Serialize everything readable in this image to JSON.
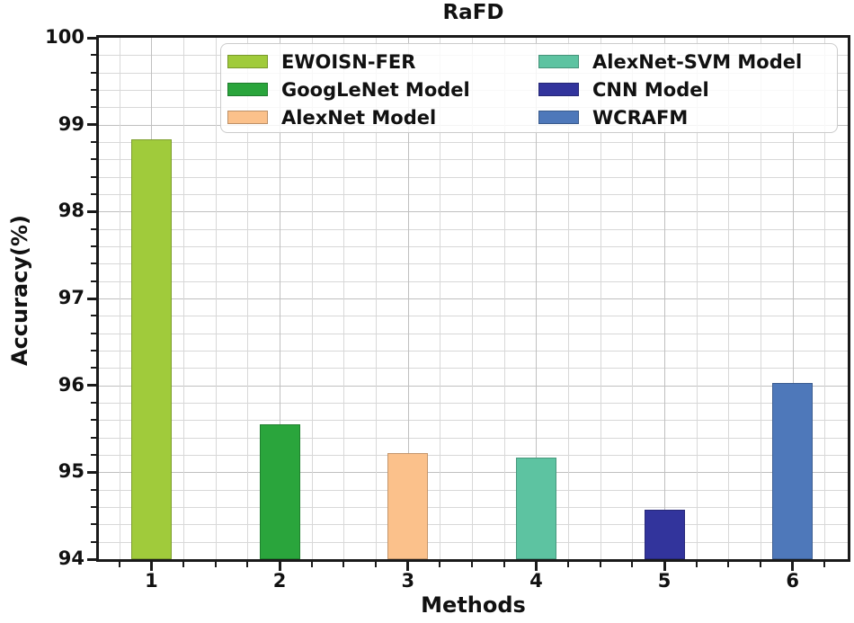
{
  "title": "RaFD",
  "axes": {
    "y_ticks": [
      "94",
      "95",
      "96",
      "97",
      "98",
      "99",
      "100"
    ],
    "x_ticks": [
      "1",
      "2",
      "3",
      "4",
      "5",
      "6"
    ]
  },
  "chart_data": {
    "type": "bar",
    "title": "RaFD",
    "xlabel": "Methods",
    "ylabel": "Accuracy(%)",
    "categories": [
      "1",
      "2",
      "3",
      "4",
      "5",
      "6"
    ],
    "series": [
      {
        "name": "EWOISN-FER",
        "x": 1,
        "value": 98.83,
        "color": "#a0cb3b"
      },
      {
        "name": "GoogLeNet Model",
        "x": 2,
        "value": 95.55,
        "color": "#2aa53c"
      },
      {
        "name": "AlexNet Model",
        "x": 3,
        "value": 95.22,
        "color": "#fbc18b"
      },
      {
        "name": "AlexNet-SVM Model",
        "x": 4,
        "value": 95.17,
        "color": "#5dc3a1"
      },
      {
        "name": "CNN Model",
        "x": 5,
        "value": 94.57,
        "color": "#32349c"
      },
      {
        "name": "WCRAFM",
        "x": 6,
        "value": 96.03,
        "color": "#4e78ba"
      }
    ],
    "ylim": [
      94,
      100
    ],
    "xlim": [
      0.59,
      6.43
    ],
    "y_major_step": 1,
    "y_minor_step": 0.2,
    "x_major_step": 1,
    "x_minor_step": 0.25,
    "grid": true,
    "legend": {
      "position": "upper center",
      "ncol": 2,
      "entries": [
        "EWOISN-FER",
        "GoogLeNet Model",
        "AlexNet Model",
        "AlexNet-SVM Model",
        "CNN Model",
        "WCRAFM"
      ]
    }
  },
  "colors": {
    "spine": "#1a1a1a",
    "grid_major": "#c0c0c0",
    "grid_minor": "#d8d8d8",
    "legend_border": "#cccccc"
  }
}
